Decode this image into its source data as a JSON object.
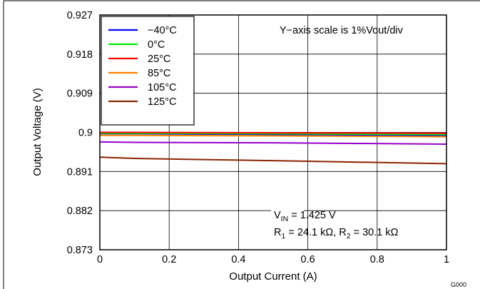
{
  "chart_data": {
    "type": "line",
    "title": "",
    "xlabel": "Output Current (A)",
    "ylabel": "Output Voltage (V)",
    "xlim": [
      0,
      1
    ],
    "ylim": [
      0.873,
      0.927
    ],
    "x_ticks": [
      0,
      0.2,
      0.4,
      0.6,
      0.8,
      1
    ],
    "x_tick_labels": [
      "0",
      "0.2",
      "0.4",
      "0.6",
      "0.8",
      "1"
    ],
    "y_ticks": [
      0.873,
      0.882,
      0.891,
      0.9,
      0.909,
      0.918,
      0.927
    ],
    "y_tick_labels": [
      "0.873",
      "0.882",
      "0.891",
      "0.9",
      "0.909",
      "0.918",
      "0.927"
    ],
    "grid": true,
    "legend_position": "top-left",
    "series": [
      {
        "name": "−40°C",
        "color": "#0000ff",
        "x": [
          0,
          0.1,
          0.5,
          1
        ],
        "y": [
          0.8997,
          0.8997,
          0.8995,
          0.8993
        ]
      },
      {
        "name": "0°C",
        "color": "#00ee00",
        "x": [
          0,
          0.1,
          0.5,
          1
        ],
        "y": [
          0.8998,
          0.8998,
          0.8997,
          0.8995
        ]
      },
      {
        "name": "25°C",
        "color": "#ff0000",
        "x": [
          0,
          0.1,
          0.5,
          1
        ],
        "y": [
          0.9,
          0.9,
          0.8999,
          0.8998
        ]
      },
      {
        "name": "85°C",
        "color": "#ff8000",
        "x": [
          0,
          0.1,
          0.5,
          1
        ],
        "y": [
          0.8993,
          0.8993,
          0.8992,
          0.899
        ]
      },
      {
        "name": "105°C",
        "color": "#9900cc",
        "x": [
          0,
          0.1,
          0.5,
          1
        ],
        "y": [
          0.8978,
          0.8977,
          0.8976,
          0.8973
        ]
      },
      {
        "name": "125°C",
        "color": "#8b2500",
        "x": [
          0,
          0.1,
          0.5,
          1
        ],
        "y": [
          0.8943,
          0.894,
          0.8935,
          0.8928
        ]
      }
    ],
    "annotations": {
      "scale_note": "Y−axis scale is 1%Vout/div",
      "vin_label": "V",
      "vin_sub": "IN",
      "vin_value": " = 1.425 V",
      "r1_label": "R",
      "r1_sub": "1",
      "r1_value": " = 24.1 kΩ, R",
      "r2_sub": "2",
      "r2_value": " = 30.1 kΩ"
    },
    "figure_code": "G000"
  }
}
